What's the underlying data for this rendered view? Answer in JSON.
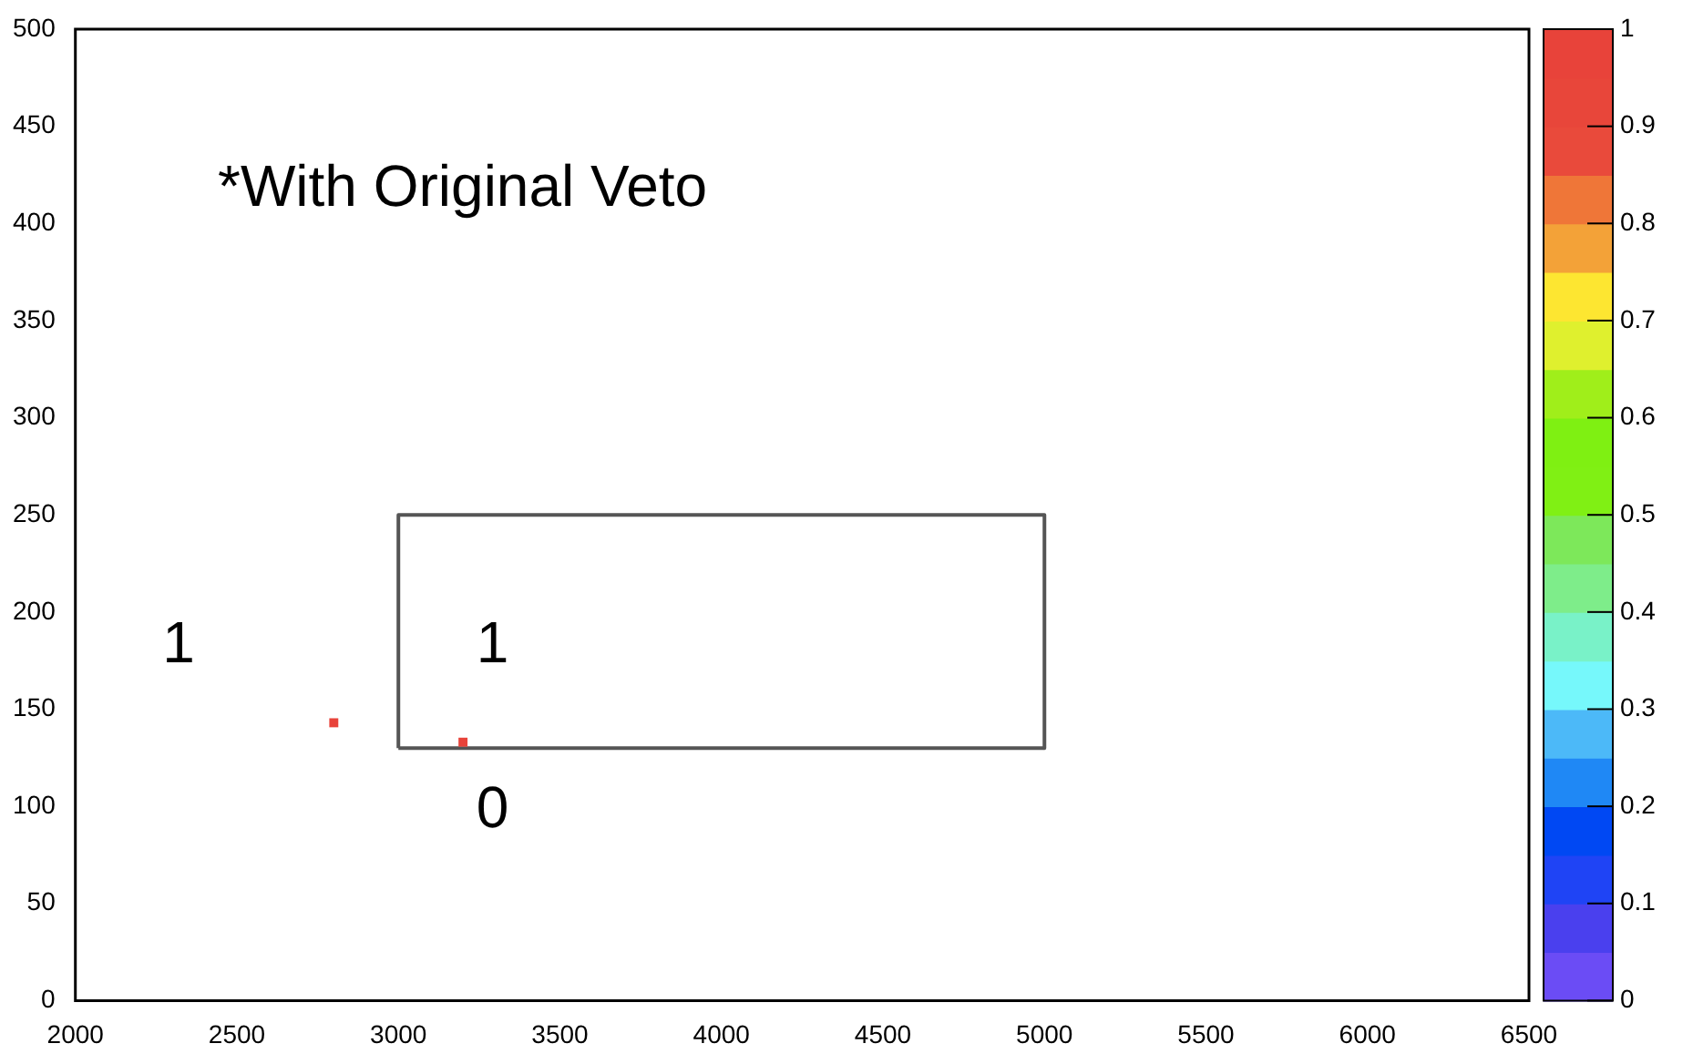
{
  "chart_data": {
    "type": "scatter",
    "xlim": [
      2000,
      6500
    ],
    "xticks": [
      2000,
      2500,
      3000,
      3500,
      4000,
      4500,
      5000,
      5500,
      6000,
      6500
    ],
    "ylim": [
      0,
      500
    ],
    "yticks": [
      0,
      50,
      100,
      150,
      200,
      250,
      300,
      350,
      400,
      450,
      500
    ],
    "series": [
      {
        "x": [
          2800,
          3200
        ],
        "values": [
          143,
          133
        ],
        "cvalues": [
          1,
          1
        ],
        "marker": "square"
      },
      {
        "type": "line",
        "x": [
          3000,
          3000,
          5000,
          5000
        ],
        "values": [
          130,
          250,
          250,
          130
        ],
        "color": "#555555",
        "marker": "none"
      },
      {
        "type": "line",
        "x": [
          3000,
          5000
        ],
        "values": [
          130,
          130
        ],
        "color": "#555555",
        "marker": "none"
      }
    ],
    "clim": [
      0,
      1
    ],
    "cticks": [
      0,
      {
        "value": 0.1,
        "label": "0.1"
      },
      {
        "value": 0.2,
        "label": "0.2"
      },
      {
        "value": 0.3,
        "label": "0.3"
      },
      {
        "value": 0.4,
        "label": "0.4"
      },
      {
        "value": 0.5,
        "label": "0.5"
      },
      {
        "value": 0.6,
        "label": "0.6"
      },
      {
        "value": 0.7,
        "label": "0.7"
      },
      {
        "value": 0.8,
        "label": "0.8"
      },
      {
        "value": 0.9,
        "label": "0.9"
      },
      1
    ],
    "grid": false,
    "legend": false,
    "annotations": [
      "*With Original Veto",
      "1",
      "1",
      "0"
    ]
  }
}
